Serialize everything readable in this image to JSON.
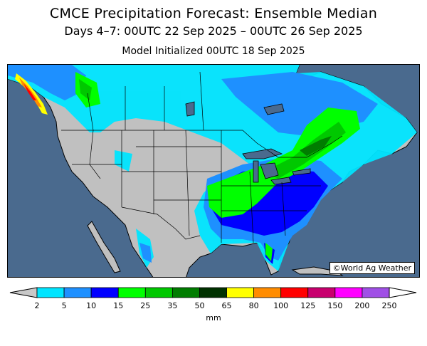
{
  "title": "CMCE Precipitation Forecast: Ensemble Median",
  "subtitle": "Days 4–7: 00UTC 22 Sep 2025 – 00UTC 26 Sep 2025",
  "init_line": "Model Initialized 00UTC 18 Sep 2025",
  "credit": "©World Ag Weather",
  "legend": {
    "units": "mm",
    "ticks": [
      "2",
      "5",
      "10",
      "15",
      "25",
      "35",
      "50",
      "65",
      "80",
      "100",
      "125",
      "150",
      "200",
      "250"
    ],
    "colors": [
      "#00e5ff",
      "#1e90ff",
      "#0000ff",
      "#00ff00",
      "#00c800",
      "#007d00",
      "#003200",
      "#ffff00",
      "#ff8c00",
      "#ff0000",
      "#c8006e",
      "#ff00ff",
      "#a050e6"
    ],
    "below_color": "#c8c8c8"
  },
  "map_colors": {
    "ocean": "#4a6a8e",
    "land_dry": "#c0c0c0",
    "lake": "#4a6a8e"
  }
}
